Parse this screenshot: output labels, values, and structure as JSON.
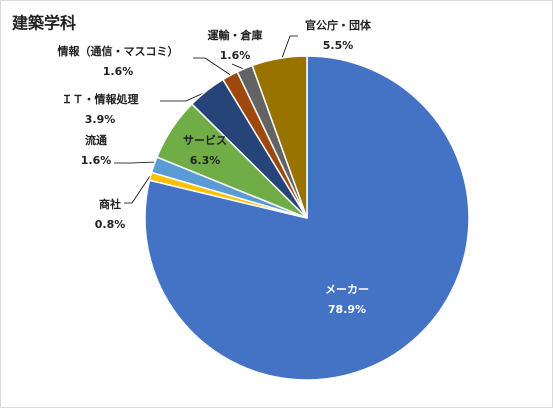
{
  "chart_data": {
    "type": "pie",
    "title": "建築学科",
    "categories": [
      "メーカー",
      "商社",
      "流通",
      "サービス",
      "ＩＴ・情報処理",
      "情報（通信・マスコミ）",
      "運輸・倉庫",
      "官公庁・団体"
    ],
    "values": [
      78.9,
      0.8,
      1.6,
      6.3,
      3.9,
      1.6,
      1.6,
      5.5
    ],
    "value_labels": [
      "78.9%",
      "0.8%",
      "1.6%",
      "6.3%",
      "3.9%",
      "1.6%",
      "1.6%",
      "5.5%"
    ],
    "colors": [
      "#4472c4",
      "#ffc000",
      "#5b9bd5",
      "#70ad47",
      "#264478",
      "#9e480e",
      "#636363",
      "#997300"
    ]
  }
}
